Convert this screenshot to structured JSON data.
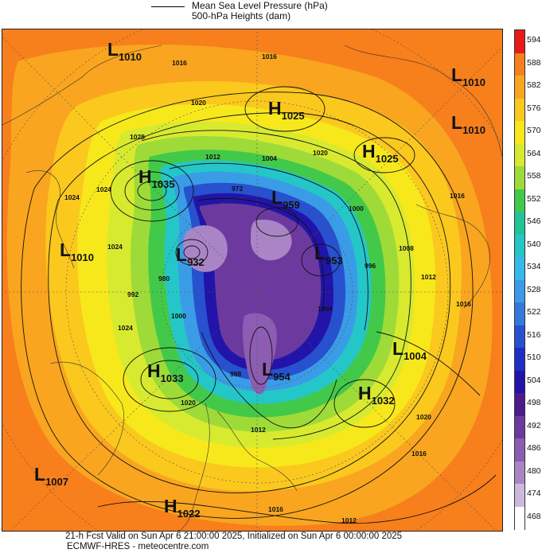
{
  "legend": {
    "line_label": "Mean Sea Level Pressure (hPa)",
    "fill_label": "500-hPa Heights (dam)"
  },
  "colorbar": {
    "ticks": [
      "594",
      "588",
      "582",
      "576",
      "570",
      "564",
      "558",
      "552",
      "546",
      "540",
      "534",
      "528",
      "522",
      "516",
      "510",
      "504",
      "498",
      "492",
      "486",
      "480",
      "474",
      "468"
    ],
    "colors": [
      "#e61a1a",
      "#f77f1c",
      "#f9a51f",
      "#fbc81e",
      "#f7e81c",
      "#d7ea2f",
      "#9fdb38",
      "#43c94a",
      "#1fc596",
      "#25c6c8",
      "#35b9e8",
      "#3a9ce6",
      "#3579db",
      "#2751cf",
      "#1d2ec6",
      "#2214a8",
      "#4d1b8b",
      "#6c3a9e",
      "#8c5db2",
      "#a985c6",
      "#ccb9dd",
      "#ffffff"
    ]
  },
  "systems": [
    {
      "type": "L",
      "value": "1010"
    },
    {
      "type": "L",
      "value": "1010"
    },
    {
      "type": "L",
      "value": "1010"
    },
    {
      "type": "H",
      "value": "1025"
    },
    {
      "type": "H",
      "value": "1025"
    },
    {
      "type": "H",
      "value": "1035"
    },
    {
      "type": "L",
      "value": "959"
    },
    {
      "type": "L",
      "value": "1010"
    },
    {
      "type": "L",
      "value": "932"
    },
    {
      "type": "L",
      "value": "953"
    },
    {
      "type": "L",
      "value": "1004"
    },
    {
      "type": "H",
      "value": "1033"
    },
    {
      "type": "L",
      "value": "954"
    },
    {
      "type": "H",
      "value": "1032"
    },
    {
      "type": "L",
      "value": "1007"
    },
    {
      "type": "H",
      "value": "1022"
    }
  ],
  "isobar_labels": [
    "1016",
    "1016",
    "1020",
    "1020",
    "1028",
    "1024",
    "1024",
    "1012",
    "1004",
    "972",
    "1000",
    "996",
    "1008",
    "1016",
    "1004",
    "1000",
    "988",
    "1012",
    "1016",
    "1020",
    "1016",
    "1012",
    "1016",
    "1020",
    "1024",
    "992",
    "980",
    "1012",
    "1024"
  ],
  "footer": {
    "line1": "21-h Fcst Valid on Sun Apr  6 21:00:00 2025, Initialized on Sun Apr  6 00:00:00 2025",
    "line2": "ECMWF-HRES  - meteocentre.com"
  }
}
